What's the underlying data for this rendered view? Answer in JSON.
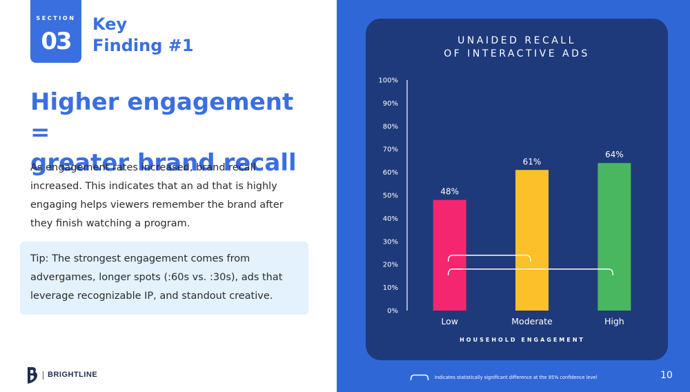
{
  "section": {
    "label": "SECTION",
    "number": "03"
  },
  "key_finding": {
    "line1": "Key",
    "line2": "Finding #1"
  },
  "headline": {
    "line1": "Higher engagement =",
    "line2": "greater brand recall"
  },
  "body": {
    "lines": [
      "As engagement rates increased, brand recall",
      "increased. This indicates that an ad that is highly",
      "engaging helps viewers remember the brand after",
      "they finish watching a program."
    ]
  },
  "tip": {
    "lines": [
      "Tip: The strongest engagement comes from",
      "advergames, longer spots (:60s vs. :30s), ads that",
      "leverage recognizable IP, and standout creative."
    ]
  },
  "brand": {
    "name": "BRIGHTLINE"
  },
  "footnote": "Indicates statistically significant difference at the 95% confidence level",
  "page_number": "10",
  "colors": {
    "accent": "#3a6fe0",
    "panel_blue": "#2f67d6",
    "chart_bg": "#1f3a7a",
    "tip_bg": "#e3f2fd",
    "bar_low": "#f4266f",
    "bar_moderate": "#fcc02a",
    "bar_high": "#48b760"
  },
  "chart_data": {
    "type": "bar",
    "title": [
      "UNAIDED RECALL",
      "OF INTERACTIVE ADS"
    ],
    "categories": [
      "Low",
      "Moderate",
      "High"
    ],
    "values": [
      48,
      61,
      64
    ],
    "value_labels": [
      "48%",
      "61%",
      "64%"
    ],
    "bar_colors": [
      "#f4266f",
      "#fcc02a",
      "#48b760"
    ],
    "xlabel": "HOUSEHOLD ENGAGEMENT",
    "ylabel": "",
    "ylim": [
      0,
      100
    ],
    "y_ticks": [
      0,
      10,
      20,
      30,
      40,
      50,
      60,
      70,
      80,
      90,
      100
    ],
    "y_tick_labels": [
      "0%",
      "10%",
      "20%",
      "30%",
      "40%",
      "50%",
      "60%",
      "70%",
      "80%",
      "90%",
      "100%"
    ],
    "grid": false,
    "significance_brackets": [
      {
        "from": "Low",
        "to": "Moderate"
      },
      {
        "from": "Low",
        "to": "High"
      }
    ]
  }
}
